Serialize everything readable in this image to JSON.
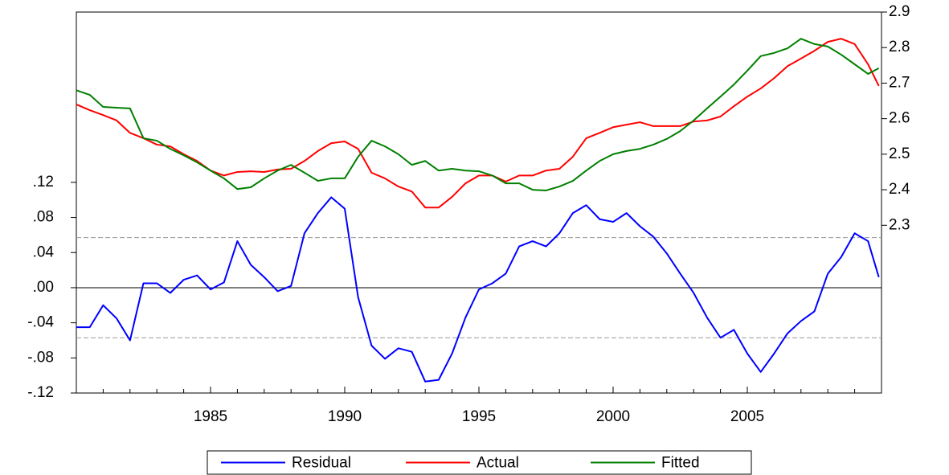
{
  "chart_data": {
    "type": "line",
    "x": [
      1980.0,
      1980.5,
      1981.0,
      1981.5,
      1982.0,
      1982.5,
      1983.0,
      1983.5,
      1984.0,
      1984.5,
      1985.0,
      1985.5,
      1986.0,
      1986.5,
      1987.0,
      1987.5,
      1988.0,
      1988.5,
      1989.0,
      1989.5,
      1990.0,
      1990.5,
      1991.0,
      1991.5,
      1992.0,
      1992.5,
      1993.0,
      1993.5,
      1994.0,
      1994.5,
      1995.0,
      1995.5,
      1996.0,
      1996.5,
      1997.0,
      1997.5,
      1998.0,
      1998.5,
      1999.0,
      1999.5,
      2000.0,
      2000.5,
      2001.0,
      2001.5,
      2002.0,
      2002.5,
      2003.0,
      2003.5,
      2004.0,
      2004.5,
      2005.0,
      2005.5,
      2006.0,
      2006.5,
      2007.0,
      2007.5,
      2008.0,
      2008.5,
      2009.0,
      2009.5,
      2009.9
    ],
    "xlim": [
      1980,
      2010
    ],
    "xticks": [
      1985,
      1990,
      1995,
      2000,
      2005
    ],
    "xminor_ticks": [
      1981,
      1982,
      1983,
      1984,
      1986,
      1987,
      1988,
      1989,
      1991,
      1992,
      1993,
      1994,
      1996,
      1997,
      1998,
      1999,
      2001,
      2002,
      2003,
      2004,
      2006,
      2007,
      2008,
      2009
    ],
    "ylim": [
      -0.12,
      0.314
    ],
    "yticks": [
      {
        "value": 0.12,
        "label": ".12"
      },
      {
        "value": 0.08,
        "label": ".08"
      },
      {
        "value": 0.04,
        "label": ".04"
      },
      {
        "value": 0,
        "label": ".00"
      },
      {
        "value": -0.04,
        "label": "-.04"
      },
      {
        "value": -0.08,
        "label": "-.08"
      },
      {
        "value": -0.12,
        "label": "-.12"
      }
    ],
    "y2lim": [
      1.828,
      2.9
    ],
    "y2ticks": [
      2.3,
      2.4,
      2.5,
      2.6,
      2.7,
      2.8,
      2.9
    ],
    "hlines": [
      {
        "value": 0,
        "style": "solid"
      },
      {
        "value": 0.057,
        "style": "dashed"
      },
      {
        "value": -0.057,
        "style": "dashed"
      }
    ],
    "series": [
      {
        "name": "Residual",
        "color": "#0000ff",
        "axis": "y",
        "values": [
          -0.045,
          -0.045,
          -0.02,
          -0.035,
          -0.06,
          0.005,
          0.005,
          -0.006,
          0.009,
          0.014,
          -0.002,
          0.006,
          0.053,
          0.026,
          0.012,
          -0.004,
          0.002,
          0.062,
          0.085,
          0.103,
          0.09,
          -0.011,
          -0.066,
          -0.081,
          -0.069,
          -0.073,
          -0.107,
          -0.105,
          -0.075,
          -0.034,
          -0.002,
          0.005,
          0.016,
          0.047,
          0.053,
          0.047,
          0.062,
          0.085,
          0.094,
          0.078,
          0.075,
          0.085,
          0.07,
          0.058,
          0.039,
          0.016,
          -0.006,
          -0.034,
          -0.057,
          -0.048,
          -0.075,
          -0.096,
          -0.075,
          -0.052,
          -0.038,
          -0.027,
          0.016,
          0.035,
          0.062,
          0.053,
          0.012
        ]
      },
      {
        "name": "Actual",
        "color": "#ff0000",
        "axis": "y2",
        "values": [
          2.64,
          2.624,
          2.61,
          2.595,
          2.56,
          2.545,
          2.527,
          2.522,
          2.5,
          2.481,
          2.454,
          2.44,
          2.45,
          2.452,
          2.45,
          2.457,
          2.459,
          2.481,
          2.509,
          2.531,
          2.536,
          2.515,
          2.448,
          2.432,
          2.409,
          2.395,
          2.35,
          2.35,
          2.38,
          2.418,
          2.44,
          2.44,
          2.423,
          2.44,
          2.44,
          2.454,
          2.459,
          2.493,
          2.545,
          2.56,
          2.576,
          2.583,
          2.59,
          2.579,
          2.579,
          2.579,
          2.592,
          2.595,
          2.606,
          2.635,
          2.662,
          2.685,
          2.714,
          2.748,
          2.769,
          2.791,
          2.816,
          2.825,
          2.81,
          2.753,
          2.692
        ]
      },
      {
        "name": "Fitted",
        "color": "#008000",
        "axis": "y2",
        "values": [
          2.68,
          2.667,
          2.633,
          2.631,
          2.629,
          2.545,
          2.538,
          2.515,
          2.497,
          2.477,
          2.454,
          2.432,
          2.402,
          2.407,
          2.432,
          2.454,
          2.47,
          2.448,
          2.425,
          2.432,
          2.432,
          2.493,
          2.538,
          2.522,
          2.5,
          2.47,
          2.481,
          2.454,
          2.459,
          2.454,
          2.452,
          2.44,
          2.418,
          2.418,
          2.4,
          2.398,
          2.409,
          2.425,
          2.454,
          2.481,
          2.5,
          2.509,
          2.515,
          2.527,
          2.543,
          2.565,
          2.595,
          2.629,
          2.662,
          2.696,
          2.735,
          2.776,
          2.785,
          2.798,
          2.825,
          2.81,
          2.803,
          2.78,
          2.753,
          2.726,
          2.742
        ]
      }
    ]
  }
}
